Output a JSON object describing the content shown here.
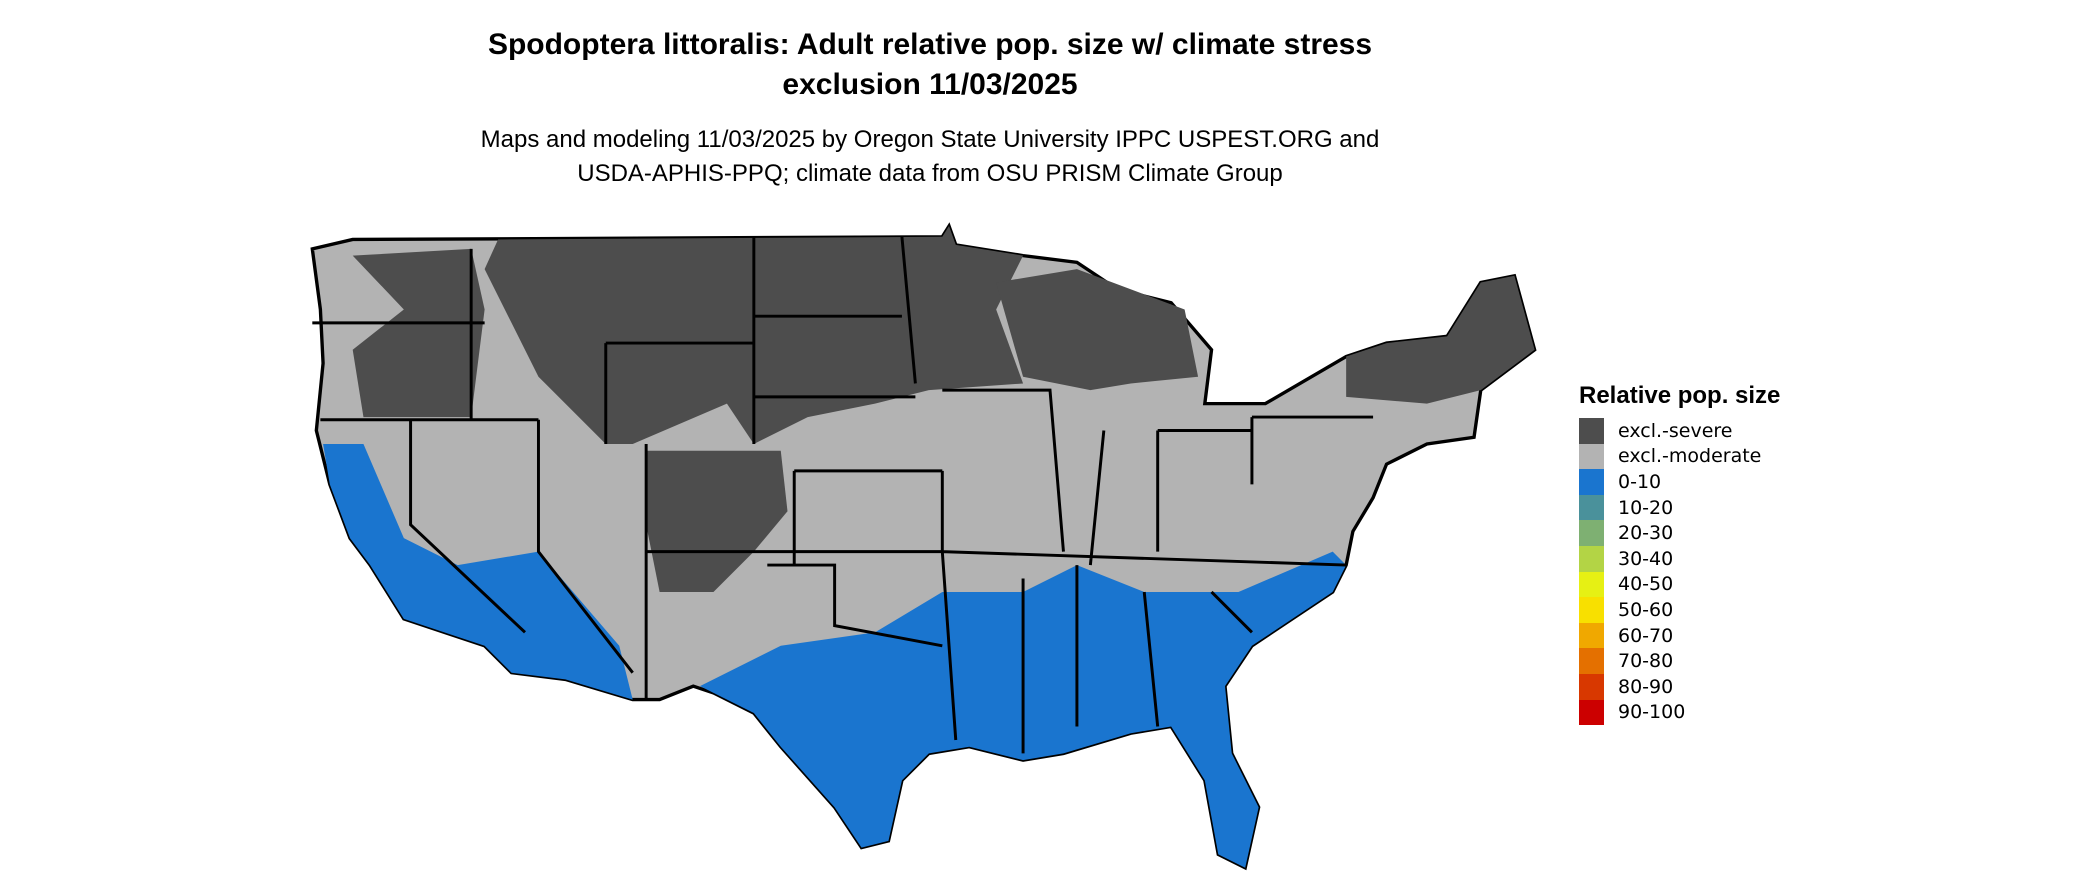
{
  "title_line1": "Spodoptera littoralis: Adult relative pop. size w/ climate stress",
  "title_line2": "exclusion 11/03/2025",
  "subtitle_line1": "Maps and modeling 11/03/2025 by Oregon State University IPPC USPEST.ORG and",
  "subtitle_line2": "USDA-APHIS-PPQ; climate data from OSU PRISM Climate Group",
  "legend": {
    "title": "Relative pop. size",
    "items": [
      {
        "label": "excl.-severe",
        "color": "#4d4d4d"
      },
      {
        "label": "excl.-moderate",
        "color": "#b3b3b3"
      },
      {
        "label": "0-10",
        "color": "#1a75cf"
      },
      {
        "label": "10-20",
        "color": "#4a919b"
      },
      {
        "label": "20-30",
        "color": "#7eb072"
      },
      {
        "label": "30-40",
        "color": "#b3d445"
      },
      {
        "label": "40-50",
        "color": "#e6f014"
      },
      {
        "label": "50-60",
        "color": "#f8e000"
      },
      {
        "label": "60-70",
        "color": "#f0a800"
      },
      {
        "label": "70-80",
        "color": "#e47000"
      },
      {
        "label": "80-90",
        "color": "#d83800"
      },
      {
        "label": "90-100",
        "color": "#cc0000"
      }
    ]
  }
}
